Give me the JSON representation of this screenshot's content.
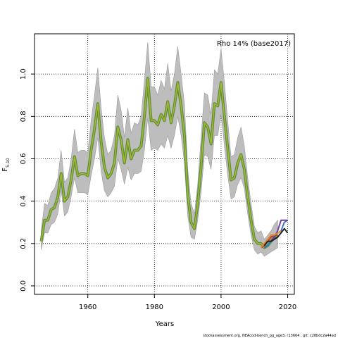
{
  "chart_data": {
    "type": "line",
    "title": "",
    "annotation": "Rho 14% (base2017)",
    "xlabel": "Years",
    "ylabel": "F",
    "ylabel_sub": "5-10",
    "xlim": [
      1944,
      2022
    ],
    "ylim": [
      -0.04,
      1.19
    ],
    "x_ticks": [
      1960,
      1980,
      2000,
      2020
    ],
    "y_ticks": [
      0.0,
      0.2,
      0.4,
      0.6,
      0.8,
      1.0
    ],
    "x_tick_labels": [
      "1960",
      "1980",
      "2000",
      "2020"
    ],
    "y_tick_labels": [
      "0.0",
      "0.2",
      "0.4",
      "0.6",
      "0.8",
      "1.0"
    ],
    "grid": "dotted",
    "footer": "stockassessment.org, NEAcod-bench_pg_age3, r13664 , git: c28bdc2a44ad",
    "x": [
      1946,
      1947,
      1948,
      1949,
      1950,
      1951,
      1952,
      1953,
      1954,
      1955,
      1956,
      1957,
      1958,
      1959,
      1960,
      1961,
      1962,
      1963,
      1964,
      1965,
      1966,
      1967,
      1968,
      1969,
      1970,
      1971,
      1972,
      1973,
      1974,
      1975,
      1976,
      1977,
      1978,
      1979,
      1980,
      1981,
      1982,
      1983,
      1984,
      1985,
      1986,
      1987,
      1988,
      1989,
      1990,
      1991,
      1992,
      1993,
      1994,
      1995,
      1996,
      1997,
      1998,
      1999,
      2000,
      2001,
      2002,
      2003,
      2004,
      2005,
      2006,
      2007,
      2008,
      2009,
      2010,
      2011,
      2012,
      2013,
      2014,
      2015,
      2016,
      2017,
      2018,
      2019,
      2020
    ],
    "series": [
      {
        "role": "base",
        "values": [
          0.21,
          0.31,
          0.31,
          0.36,
          0.37,
          0.42,
          0.53,
          0.4,
          0.42,
          0.5,
          0.61,
          0.52,
          0.53,
          0.53,
          0.52,
          0.64,
          0.74,
          0.86,
          0.68,
          0.56,
          0.51,
          0.53,
          0.58,
          0.75,
          0.69,
          0.58,
          0.69,
          0.6,
          0.64,
          0.64,
          0.66,
          0.8,
          0.98,
          0.78,
          0.78,
          0.76,
          0.81,
          0.78,
          0.87,
          0.77,
          0.85,
          0.96,
          0.85,
          0.71,
          0.43,
          0.3,
          0.27,
          0.39,
          0.56,
          0.77,
          0.75,
          0.67,
          0.86,
          0.85,
          0.96,
          0.8,
          0.65,
          0.5,
          0.51,
          0.58,
          0.62,
          0.55,
          0.42,
          0.31,
          0.22,
          0.2,
          0.2,
          0.18,
          0.19,
          0.21,
          0.23,
          0.24,
          null,
          null,
          null
        ],
        "lower": [
          0.17,
          0.25,
          0.25,
          0.29,
          0.3,
          0.34,
          0.45,
          0.33,
          0.35,
          0.42,
          0.51,
          0.44,
          0.44,
          0.44,
          0.43,
          0.52,
          0.6,
          0.7,
          0.54,
          0.45,
          0.42,
          0.44,
          0.47,
          0.6,
          0.55,
          0.48,
          0.56,
          0.5,
          0.53,
          0.53,
          0.54,
          0.64,
          0.79,
          0.64,
          0.65,
          0.64,
          0.67,
          0.65,
          0.71,
          0.65,
          0.71,
          0.8,
          0.71,
          0.58,
          0.33,
          0.23,
          0.22,
          0.31,
          0.44,
          0.62,
          0.61,
          0.55,
          0.71,
          0.71,
          0.81,
          0.66,
          0.52,
          0.41,
          0.42,
          0.48,
          0.51,
          0.46,
          0.34,
          0.24,
          0.17,
          0.15,
          0.16,
          0.14,
          0.15,
          0.16,
          0.17,
          0.18,
          null,
          null,
          null
        ],
        "upper": [
          0.26,
          0.39,
          0.38,
          0.44,
          0.46,
          0.51,
          0.64,
          0.49,
          0.51,
          0.6,
          0.74,
          0.63,
          0.64,
          0.64,
          0.63,
          0.78,
          0.9,
          1.03,
          0.84,
          0.7,
          0.62,
          0.64,
          0.71,
          0.9,
          0.83,
          0.7,
          0.84,
          0.72,
          0.77,
          0.76,
          0.8,
          0.97,
          1.15,
          0.94,
          0.94,
          0.9,
          0.97,
          0.93,
          1.05,
          0.92,
          1.0,
          1.13,
          1.0,
          0.86,
          0.55,
          0.39,
          0.34,
          0.48,
          0.7,
          0.91,
          0.9,
          0.81,
          1.02,
          1.0,
          1.12,
          0.96,
          0.78,
          0.61,
          0.62,
          0.7,
          0.75,
          0.66,
          0.51,
          0.39,
          0.28,
          0.25,
          0.26,
          0.22,
          0.24,
          0.26,
          0.29,
          0.31,
          null,
          null,
          null
        ]
      },
      {
        "role": "retro",
        "color": "#3b78c4",
        "values": [
          null,
          null,
          null,
          null,
          null,
          null,
          null,
          null,
          null,
          null,
          null,
          null,
          null,
          null,
          null,
          null,
          null,
          null,
          null,
          null,
          null,
          null,
          null,
          null,
          null,
          null,
          null,
          null,
          null,
          null,
          null,
          null,
          null,
          null,
          null,
          null,
          null,
          null,
          null,
          null,
          null,
          null,
          null,
          null,
          null,
          null,
          null,
          null,
          null,
          null,
          null,
          null,
          null,
          null,
          null,
          null,
          null,
          null,
          null,
          null,
          null,
          null,
          null,
          null,
          null,
          null,
          null,
          0.18,
          0.19,
          0.21,
          0.23,
          0.25,
          0.26,
          0.3,
          0.31
        ]
      },
      {
        "role": "retro",
        "color": "#6a3fa6",
        "values": [
          null,
          null,
          null,
          null,
          null,
          null,
          null,
          null,
          null,
          null,
          null,
          null,
          null,
          null,
          null,
          null,
          null,
          null,
          null,
          null,
          null,
          null,
          null,
          null,
          null,
          null,
          null,
          null,
          null,
          null,
          null,
          null,
          null,
          null,
          null,
          null,
          null,
          null,
          null,
          null,
          null,
          null,
          null,
          null,
          null,
          null,
          null,
          null,
          null,
          null,
          null,
          null,
          null,
          null,
          null,
          null,
          null,
          null,
          null,
          null,
          null,
          null,
          null,
          null,
          null,
          null,
          null,
          null,
          null,
          0.21,
          0.23,
          0.26,
          0.31,
          0.31,
          0.31
        ]
      },
      {
        "role": "retro",
        "color": "#c0392b",
        "values": [
          null,
          null,
          null,
          null,
          null,
          null,
          null,
          null,
          null,
          null,
          null,
          null,
          null,
          null,
          null,
          null,
          null,
          null,
          null,
          null,
          null,
          null,
          null,
          null,
          null,
          null,
          null,
          null,
          null,
          null,
          null,
          null,
          null,
          null,
          null,
          null,
          null,
          null,
          null,
          null,
          null,
          null,
          null,
          null,
          null,
          null,
          null,
          null,
          null,
          null,
          null,
          null,
          null,
          null,
          null,
          null,
          null,
          null,
          null,
          null,
          null,
          null,
          null,
          null,
          null,
          null,
          0.18,
          0.19,
          0.21,
          0.23,
          0.24,
          0.24,
          null,
          null,
          null
        ]
      },
      {
        "role": "retro",
        "color": "#e0862b",
        "values": [
          null,
          null,
          null,
          null,
          null,
          null,
          null,
          null,
          null,
          null,
          null,
          null,
          null,
          null,
          null,
          null,
          null,
          null,
          null,
          null,
          null,
          null,
          null,
          null,
          null,
          null,
          null,
          null,
          null,
          null,
          null,
          null,
          null,
          null,
          null,
          null,
          null,
          null,
          null,
          null,
          null,
          null,
          null,
          null,
          null,
          null,
          null,
          null,
          null,
          null,
          null,
          null,
          null,
          null,
          null,
          null,
          null,
          null,
          null,
          null,
          null,
          null,
          null,
          null,
          null,
          null,
          0.18,
          0.2,
          0.22,
          0.24,
          0.24,
          0.25,
          0.26,
          null,
          null
        ]
      },
      {
        "role": "retro",
        "color": "#222222",
        "values": [
          null,
          null,
          null,
          null,
          null,
          null,
          null,
          null,
          null,
          null,
          null,
          null,
          null,
          null,
          null,
          null,
          null,
          null,
          null,
          null,
          null,
          null,
          null,
          null,
          null,
          null,
          null,
          null,
          null,
          null,
          null,
          null,
          null,
          null,
          null,
          null,
          null,
          null,
          null,
          null,
          null,
          null,
          null,
          null,
          null,
          null,
          null,
          null,
          null,
          null,
          null,
          null,
          null,
          null,
          null,
          null,
          null,
          null,
          null,
          null,
          null,
          null,
          null,
          null,
          null,
          null,
          null,
          0.19,
          0.21,
          0.21,
          0.22,
          0.23,
          0.25,
          0.27,
          0.25
        ]
      }
    ],
    "colors": {
      "band": "#bdbdbd",
      "band_stroke": "#9a9a9a",
      "base_outer": "#5a8f3c",
      "base_inner": "#a8b62f"
    }
  }
}
